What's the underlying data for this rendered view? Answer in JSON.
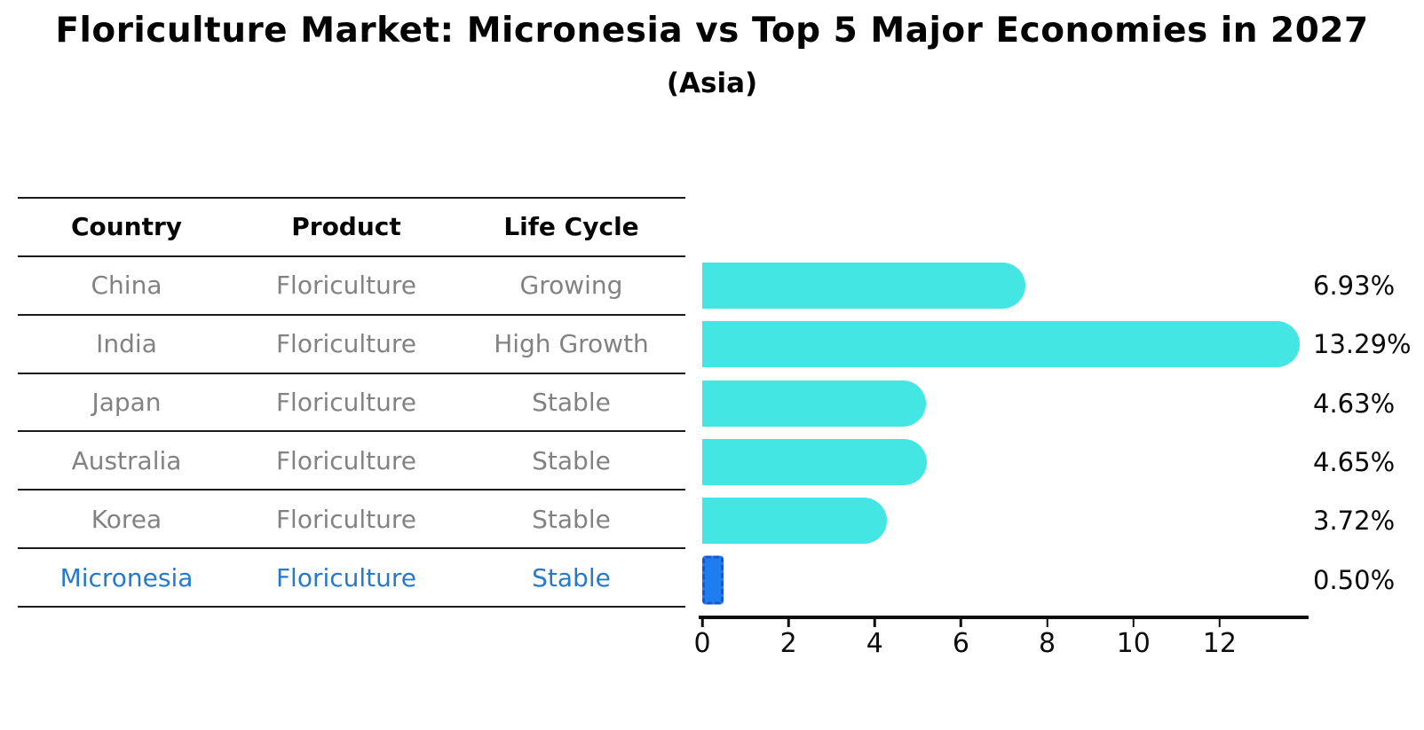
{
  "table": {
    "headers": [
      "Country",
      "Product",
      "Life Cycle"
    ],
    "rows": [
      {
        "country": "China",
        "product": "Floriculture",
        "life_cycle": "Growing",
        "highlight": false
      },
      {
        "country": "India",
        "product": "Floriculture",
        "life_cycle": "High Growth",
        "highlight": false
      },
      {
        "country": "Japan",
        "product": "Floriculture",
        "life_cycle": "Stable",
        "highlight": false
      },
      {
        "country": "Australia",
        "product": "Floriculture",
        "life_cycle": "Stable",
        "highlight": false
      },
      {
        "country": "Korea",
        "product": "Floriculture",
        "life_cycle": "Stable",
        "highlight": false
      },
      {
        "country": "Micronesia",
        "product": "Floriculture",
        "life_cycle": "Stable",
        "highlight": true
      }
    ]
  },
  "chart_data": {
    "type": "bar",
    "orientation": "horizontal",
    "title": "Floriculture Market: Micronesia vs Top 5 Major Economies in 2027",
    "subtitle": "(Asia)",
    "categories": [
      "China",
      "India",
      "Japan",
      "Australia",
      "Korea",
      "Micronesia"
    ],
    "values": [
      6.93,
      13.29,
      4.63,
      4.65,
      3.72,
      0.5
    ],
    "value_labels": [
      "6.93%",
      "13.29%",
      "4.63%",
      "4.65%",
      "3.72%",
      "0.50%"
    ],
    "x_ticks": [
      0,
      2,
      4,
      6,
      8,
      10,
      12
    ],
    "xlim": [
      0,
      14
    ],
    "highlight_index": 5,
    "legend": "none",
    "grid": "off",
    "colors": {
      "bar": "#43E6E3",
      "highlight_bar": "#1E7EF0",
      "highlight_border": "#1A55CC",
      "highlight_text": "#2879C9",
      "text_muted": "#828282"
    }
  }
}
